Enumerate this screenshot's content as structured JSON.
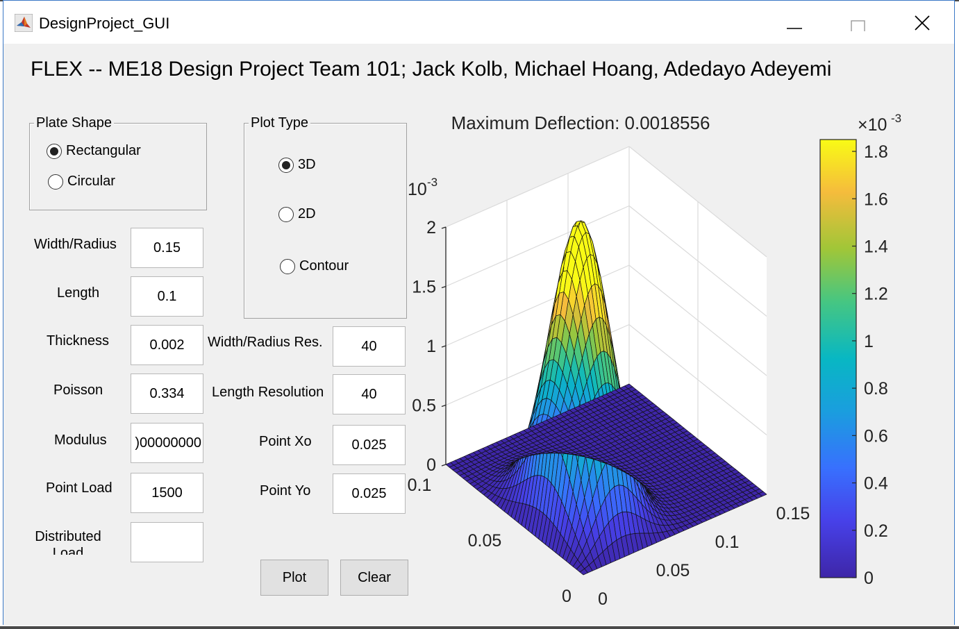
{
  "window": {
    "title": "DesignProject_GUI",
    "icon": "matlab-icon",
    "controls": [
      "minimize-icon",
      "maximize-icon",
      "close-icon"
    ]
  },
  "heading": "FLEX -- ME18 Design Project Team 101; Jack Kolb, Michael Hoang, Adedayo Adeyemi",
  "plate_shape": {
    "title": "Plate Shape",
    "options": [
      "Rectangular",
      "Circular"
    ],
    "selected": "Rectangular"
  },
  "plot_type": {
    "title": "Plot Type",
    "options": [
      "3D",
      "2D",
      "Contour"
    ],
    "selected": "3D"
  },
  "fields_left": [
    {
      "label": "Width/Radius",
      "value": "0.15"
    },
    {
      "label": "Length",
      "value": "0.1"
    },
    {
      "label": "Thickness",
      "value": "0.002"
    },
    {
      "label": "Poisson",
      "value": "0.334"
    },
    {
      "label": "Modulus",
      "value": ")00000000"
    },
    {
      "label": "Point Load",
      "value": "1500"
    },
    {
      "label": "Distributed Load",
      "value": ""
    }
  ],
  "fields_right": [
    {
      "label": "Width/Radius Res.",
      "value": "40"
    },
    {
      "label": "Length Resolution",
      "value": "40"
    },
    {
      "label": "Point Xo",
      "value": "0.025"
    },
    {
      "label": "Point Yo",
      "value": "0.025"
    }
  ],
  "buttons": {
    "plot": "Plot",
    "clear": "Clear"
  },
  "chart_data": {
    "type": "surface",
    "title": "Maximum Deflection: 0.0018556",
    "z_exponent_label": "10^-3",
    "x_range": [
      0,
      0.15
    ],
    "y_range": [
      0,
      0.1
    ],
    "z_range": [
      0,
      0.002
    ],
    "z_ticks": [
      "0",
      "0.5",
      "1",
      "1.5",
      "2"
    ],
    "x_ticks": [
      "0",
      "0.05",
      "0.1",
      "0.15"
    ],
    "y_ticks": [
      "0",
      "0.05",
      "0.1"
    ],
    "peak": {
      "x": 0.025,
      "y": 0.025,
      "z": 0.0018556
    },
    "colorbar": {
      "exponent": "×10^-3",
      "ticks": [
        "0",
        "0.2",
        "0.4",
        "0.6",
        "0.8",
        "1",
        "1.2",
        "1.4",
        "1.6",
        "1.8"
      ],
      "colormap": "parula"
    }
  }
}
